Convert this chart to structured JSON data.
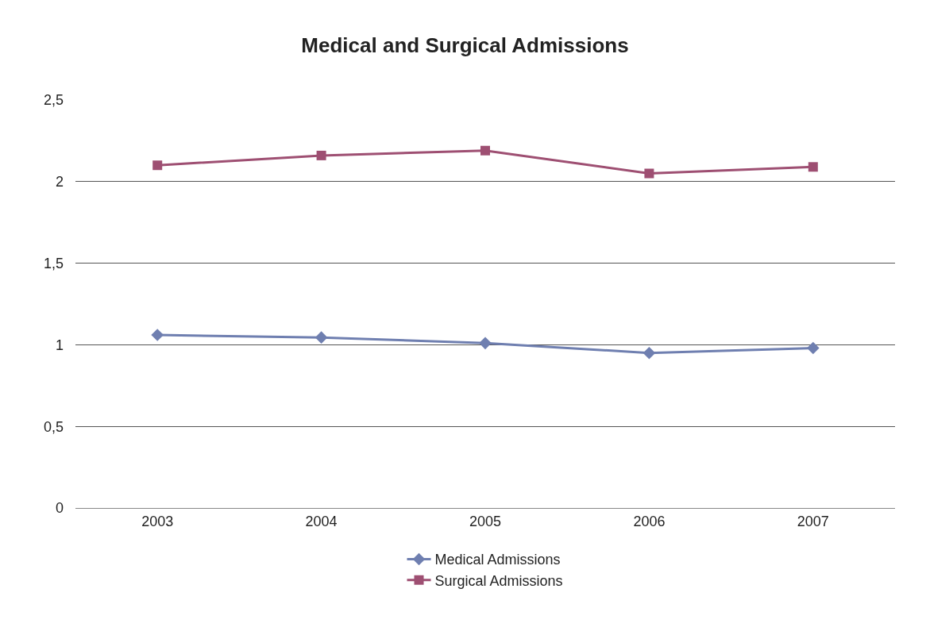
{
  "chart_data": {
    "type": "line",
    "title": "Medical and Surgical Admissions",
    "categories": [
      "2003",
      "2004",
      "2005",
      "2006",
      "2007"
    ],
    "series": [
      {
        "name": "Medical Admissions",
        "color": "#6f7fb0",
        "marker": "diamond",
        "values": [
          1.06,
          1.045,
          1.01,
          0.95,
          0.98
        ]
      },
      {
        "name": "Surgical Admissions",
        "color": "#9e4f72",
        "marker": "square",
        "values": [
          2.1,
          2.16,
          2.19,
          2.05,
          2.09
        ]
      }
    ],
    "ylim": [
      0,
      2.5
    ],
    "yticks": [
      0,
      {
        "value": 0.5,
        "label": "0,5"
      },
      1,
      {
        "value": 1.5,
        "label": "1,5"
      },
      2,
      {
        "value": 2.5,
        "label": "2,5"
      }
    ],
    "grid": "y",
    "legend": "bottom",
    "line_style": "solid"
  }
}
